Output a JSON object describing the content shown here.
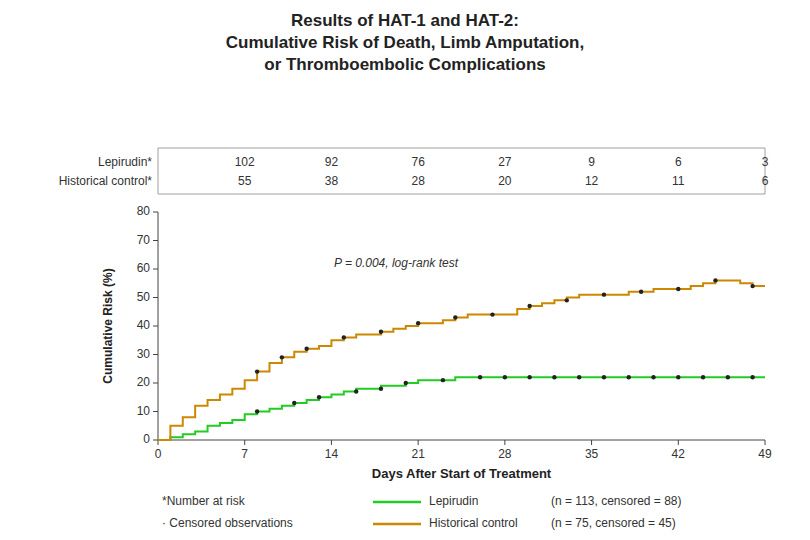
{
  "chart_data": {
    "type": "step",
    "title": "Results of HAT-1 and HAT-2:\nCumulative Risk of Death, Limb Amputation,\nor Thromboembolic Complications",
    "xlabel": "Days After Start of Treatment",
    "ylabel": "Cumulative Risk (%)",
    "xlim": [
      0,
      49
    ],
    "ylim": [
      0,
      80
    ],
    "xticks": [
      0,
      7,
      14,
      21,
      28,
      35,
      42,
      49
    ],
    "yticks": [
      0,
      10,
      20,
      30,
      40,
      50,
      60,
      70,
      80
    ],
    "grid": false,
    "legend": "bottom",
    "annotations": [
      "P = 0.004, log-rank test"
    ],
    "footnotes": [
      "*Number at risk",
      "· Censored observations"
    ],
    "series": [
      {
        "name": "Lepirudin",
        "color": "#22CC22",
        "legend_note": "(n = 113, censored = 88)",
        "x": [
          0,
          1,
          2,
          3,
          4,
          5,
          6,
          7,
          8,
          9,
          10,
          11,
          12,
          13,
          14,
          15,
          16,
          17,
          18,
          19,
          20,
          21,
          22,
          23,
          24,
          25,
          26,
          27,
          28,
          29,
          30,
          31,
          32,
          33,
          34,
          35,
          36,
          37,
          38,
          39,
          40,
          41,
          42,
          43,
          44,
          45,
          46,
          47,
          48,
          49
        ],
        "values": [
          0,
          1,
          2,
          3,
          5,
          6,
          7,
          9,
          10,
          11,
          12,
          13,
          14,
          15,
          16,
          17,
          18,
          18,
          19,
          19,
          20,
          21,
          21,
          21,
          22,
          22,
          22,
          22,
          22,
          22,
          22,
          22,
          22,
          22,
          22,
          22,
          22,
          22,
          22,
          22,
          22,
          22,
          22,
          22,
          22,
          22,
          22,
          22,
          22,
          22
        ],
        "censored_x": [
          8,
          11,
          13,
          16,
          18,
          20,
          23,
          26,
          28,
          30,
          32,
          34,
          36,
          38,
          40,
          42,
          44,
          46,
          48
        ],
        "censored_values": [
          10,
          13,
          15,
          17,
          18,
          20,
          21,
          22,
          22,
          22,
          22,
          22,
          22,
          22,
          22,
          22,
          22,
          22,
          22
        ]
      },
      {
        "name": "Historical control",
        "color": "#CC8800",
        "legend_note": "(n = 75, censored = 45)",
        "x": [
          0,
          1,
          2,
          3,
          4,
          5,
          6,
          7,
          8,
          9,
          10,
          11,
          12,
          13,
          14,
          15,
          16,
          17,
          18,
          19,
          20,
          21,
          22,
          23,
          24,
          25,
          26,
          27,
          28,
          29,
          30,
          31,
          32,
          33,
          34,
          35,
          36,
          37,
          38,
          39,
          40,
          41,
          42,
          43,
          44,
          45,
          46,
          47,
          48,
          49
        ],
        "values": [
          0,
          5,
          8,
          12,
          14,
          16,
          18,
          21,
          24,
          27,
          29,
          31,
          32,
          33,
          35,
          36,
          37,
          37,
          38,
          39,
          40,
          41,
          41,
          42,
          43,
          44,
          44,
          44,
          44,
          46,
          47,
          48,
          49,
          50,
          51,
          51,
          51,
          51,
          52,
          52,
          53,
          53,
          53,
          54,
          55,
          56,
          56,
          55,
          54,
          54
        ],
        "censored_x": [
          8,
          10,
          12,
          15,
          18,
          21,
          24,
          27,
          30,
          33,
          36,
          39,
          42,
          45,
          48
        ],
        "censored_values": [
          24,
          29,
          32,
          36,
          38,
          41,
          43,
          44,
          47,
          49,
          51,
          52,
          53,
          56,
          54
        ]
      }
    ],
    "at_risk": {
      "x": [
        7,
        14,
        21,
        28,
        35,
        42,
        49
      ],
      "series": [
        {
          "name": "Lepirudin*",
          "values": [
            102,
            92,
            76,
            27,
            9,
            6,
            3
          ]
        },
        {
          "name": "Historical control*",
          "values": [
            55,
            38,
            28,
            20,
            12,
            11,
            6
          ]
        }
      ]
    }
  }
}
